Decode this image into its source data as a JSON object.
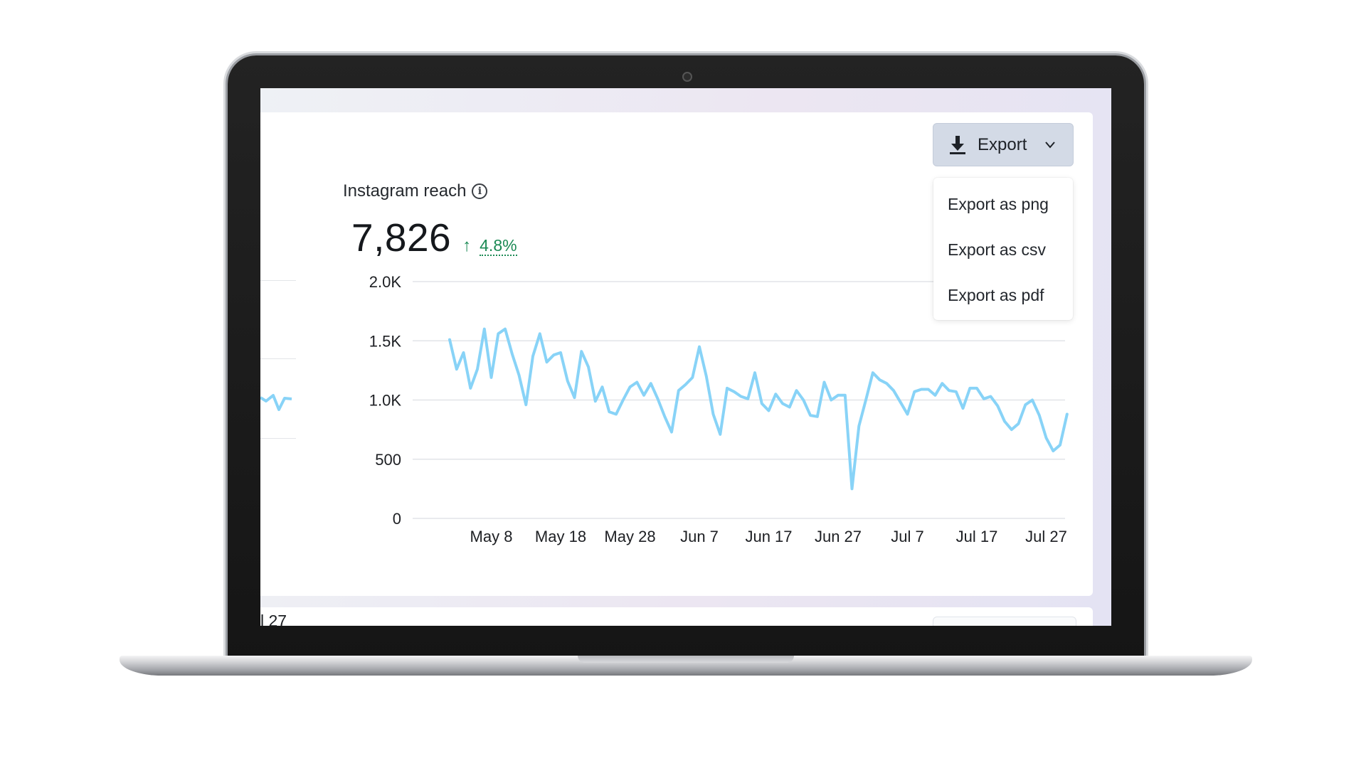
{
  "widget": {
    "title": "Instagram reach",
    "value": "7,826",
    "change": "4.8%"
  },
  "export": {
    "label": "Export",
    "menu": [
      "Export as png",
      "Export as csv",
      "Export as pdf"
    ]
  },
  "left_chart": {
    "tick": "l 27"
  },
  "colors": {
    "line": "#88d3f7",
    "positive": "#1c8a55"
  },
  "chart_data": {
    "type": "line",
    "title": "Instagram reach",
    "y_ticks": [
      "0",
      "500",
      "1.0K",
      "1.5K",
      "2.0K"
    ],
    "ylim": [
      0,
      2000
    ],
    "x_ticks": [
      {
        "label": "May 8",
        "day": 8
      },
      {
        "label": "May 18",
        "day": 18
      },
      {
        "label": "May 28",
        "day": 28
      },
      {
        "label": "Jun 7",
        "day": 38
      },
      {
        "label": "Jun 17",
        "day": 48
      },
      {
        "label": "Jun 27",
        "day": 58
      },
      {
        "label": "Jul 7",
        "day": 68
      },
      {
        "label": "Jul 17",
        "day": 78
      },
      {
        "label": "Jul 27",
        "day": 88
      }
    ],
    "x_start": "May 6",
    "values": [
      1510,
      1260,
      1400,
      1100,
      1260,
      1600,
      1190,
      1560,
      1600,
      1390,
      1210,
      960,
      1370,
      1560,
      1320,
      1380,
      1400,
      1160,
      1020,
      1410,
      1280,
      990,
      1110,
      900,
      880,
      1000,
      1110,
      1150,
      1040,
      1140,
      1010,
      860,
      730,
      1080,
      1130,
      1190,
      1450,
      1200,
      880,
      710,
      1100,
      1070,
      1030,
      1010,
      1230,
      970,
      910,
      1050,
      970,
      940,
      1080,
      1000,
      870,
      860,
      1150,
      1000,
      1040,
      1040,
      250,
      780,
      1000,
      1230,
      1170,
      1140,
      1080,
      980,
      880,
      1070,
      1090,
      1090,
      1040,
      1140,
      1080,
      1070,
      930,
      1100,
      1100,
      1010,
      1030,
      950,
      820,
      750,
      800,
      960,
      1000,
      870,
      680,
      570,
      620,
      880
    ]
  }
}
